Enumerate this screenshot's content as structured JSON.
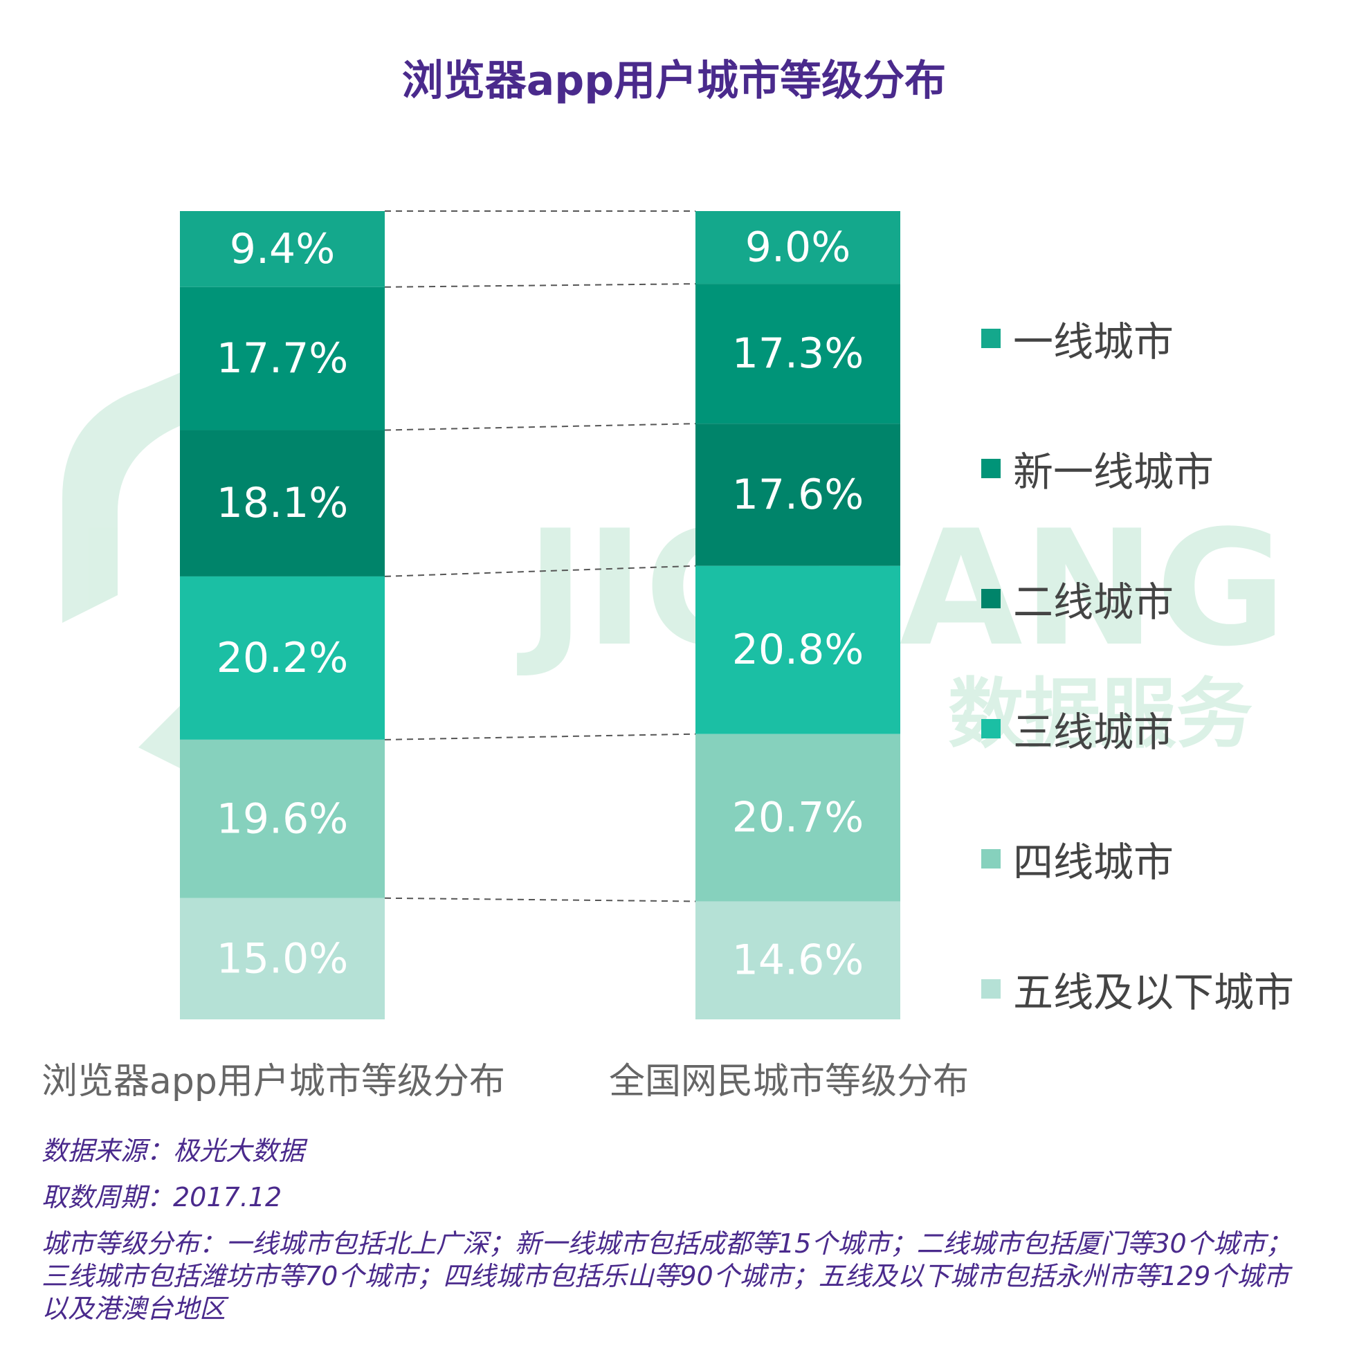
{
  "chart_data": {
    "type": "bar",
    "stacked": true,
    "orientation": "vertical",
    "title": "浏览器app用户城市等级分布",
    "categories": [
      "浏览器app用户城市等级分布",
      "全国网民城市等级分布"
    ],
    "series": [
      {
        "name": "一线城市",
        "values": [
          9.4,
          9.0
        ],
        "labels": [
          "9.4%",
          "9.0%"
        ],
        "color": "#14a88c"
      },
      {
        "name": "新一线城市",
        "values": [
          17.7,
          17.3
        ],
        "labels": [
          "17.7%",
          "17.3%"
        ],
        "color": "#009478"
      },
      {
        "name": "二线城市",
        "values": [
          18.1,
          17.6
        ],
        "labels": [
          "18.1%",
          "17.6%"
        ],
        "color": "#00846a"
      },
      {
        "name": "三线城市",
        "values": [
          20.2,
          20.8
        ],
        "labels": [
          "20.2%",
          "20.8%"
        ],
        "color": "#1bbfa4"
      },
      {
        "name": "四线城市",
        "values": [
          19.6,
          20.7
        ],
        "labels": [
          "19.6%",
          "20.7%"
        ],
        "color": "#86d1bd"
      },
      {
        "name": "五线及以下城市",
        "values": [
          15.0,
          14.6
        ],
        "labels": [
          "15.0%",
          "14.6%"
        ],
        "color": "#b5e1d6"
      }
    ],
    "legend_position": "right",
    "connector_lines": "dashed"
  },
  "watermark": {
    "text_1": "JIGUANG",
    "text_2": "数据服务"
  },
  "notes": {
    "source": "数据来源：极光大数据",
    "period": "取数周期：2017.12",
    "definition": "城市等级分布：一线城市包括北上广深；新一线城市包括成都等15个城市；二线城市包括厦门等30个城市；三线城市包括潍坊市等70个城市；四线城市包括乐山等90个城市；五线及以下城市包括永州市等129个城市以及港澳台地区"
  }
}
